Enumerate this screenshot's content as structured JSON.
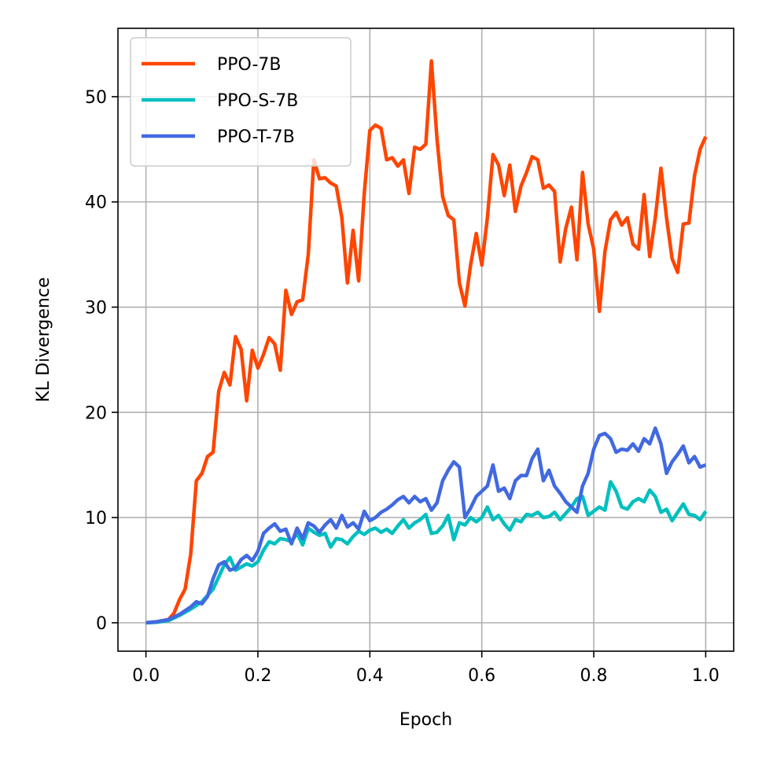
{
  "chart_data": {
    "type": "line",
    "title": "",
    "xlabel": "Epoch",
    "ylabel": "KL Divergence",
    "xlim": [
      -0.05,
      1.05
    ],
    "ylim": [
      -2.7,
      56.5
    ],
    "xticks": [
      0.0,
      0.2,
      0.4,
      0.6,
      0.8,
      1.0
    ],
    "xtick_labels": [
      "0.0",
      "0.2",
      "0.4",
      "0.6",
      "0.8",
      "1.0"
    ],
    "yticks": [
      0,
      10,
      20,
      30,
      40,
      50
    ],
    "ytick_labels": [
      "0",
      "10",
      "20",
      "30",
      "40",
      "50"
    ],
    "grid": true,
    "legend_position": "top-left",
    "series": [
      {
        "name": "PPO-7B",
        "color": "#ff4500",
        "points": [
          [
            0.0,
            0.0
          ],
          [
            0.02,
            0.1
          ],
          [
            0.04,
            0.3
          ],
          [
            0.05,
            0.9
          ],
          [
            0.06,
            2.2
          ],
          [
            0.07,
            3.2
          ],
          [
            0.08,
            6.5
          ],
          [
            0.09,
            13.5
          ],
          [
            0.1,
            14.2
          ],
          [
            0.11,
            15.8
          ],
          [
            0.12,
            16.2
          ],
          [
            0.13,
            22.0
          ],
          [
            0.14,
            23.8
          ],
          [
            0.15,
            22.6
          ],
          [
            0.16,
            27.2
          ],
          [
            0.17,
            26.0
          ],
          [
            0.18,
            21.1
          ],
          [
            0.19,
            25.9
          ],
          [
            0.2,
            24.2
          ],
          [
            0.21,
            25.5
          ],
          [
            0.22,
            27.1
          ],
          [
            0.23,
            26.5
          ],
          [
            0.24,
            24.0
          ],
          [
            0.25,
            31.6
          ],
          [
            0.26,
            29.3
          ],
          [
            0.27,
            30.5
          ],
          [
            0.28,
            30.7
          ],
          [
            0.29,
            35.0
          ],
          [
            0.3,
            44.0
          ],
          [
            0.31,
            42.2
          ],
          [
            0.32,
            42.3
          ],
          [
            0.33,
            41.8
          ],
          [
            0.34,
            41.5
          ],
          [
            0.35,
            38.5
          ],
          [
            0.36,
            32.3
          ],
          [
            0.37,
            37.3
          ],
          [
            0.38,
            32.5
          ],
          [
            0.39,
            40.8
          ],
          [
            0.4,
            46.8
          ],
          [
            0.41,
            47.3
          ],
          [
            0.42,
            47.0
          ],
          [
            0.43,
            44.0
          ],
          [
            0.44,
            44.2
          ],
          [
            0.45,
            43.4
          ],
          [
            0.46,
            44.0
          ],
          [
            0.47,
            40.8
          ],
          [
            0.48,
            45.2
          ],
          [
            0.49,
            45.0
          ],
          [
            0.5,
            45.5
          ],
          [
            0.51,
            53.4
          ],
          [
            0.52,
            46.0
          ],
          [
            0.53,
            40.5
          ],
          [
            0.54,
            38.7
          ],
          [
            0.55,
            38.3
          ],
          [
            0.56,
            32.3
          ],
          [
            0.57,
            30.1
          ],
          [
            0.58,
            34.0
          ],
          [
            0.59,
            37.0
          ],
          [
            0.6,
            34.0
          ],
          [
            0.61,
            38.5
          ],
          [
            0.62,
            44.5
          ],
          [
            0.63,
            43.5
          ],
          [
            0.64,
            40.6
          ],
          [
            0.65,
            43.5
          ],
          [
            0.66,
            39.1
          ],
          [
            0.67,
            41.5
          ],
          [
            0.68,
            42.8
          ],
          [
            0.69,
            44.3
          ],
          [
            0.7,
            44.0
          ],
          [
            0.71,
            41.3
          ],
          [
            0.72,
            41.6
          ],
          [
            0.73,
            41.0
          ],
          [
            0.74,
            34.3
          ],
          [
            0.75,
            37.5
          ],
          [
            0.76,
            39.5
          ],
          [
            0.77,
            34.5
          ],
          [
            0.78,
            42.8
          ],
          [
            0.79,
            37.9
          ],
          [
            0.8,
            35.5
          ],
          [
            0.81,
            29.6
          ],
          [
            0.82,
            35.3
          ],
          [
            0.83,
            38.3
          ],
          [
            0.84,
            39.0
          ],
          [
            0.85,
            37.8
          ],
          [
            0.86,
            38.5
          ],
          [
            0.87,
            36.0
          ],
          [
            0.88,
            35.5
          ],
          [
            0.89,
            40.7
          ],
          [
            0.9,
            34.8
          ],
          [
            0.91,
            38.5
          ],
          [
            0.92,
            43.2
          ],
          [
            0.93,
            38.5
          ],
          [
            0.94,
            34.6
          ],
          [
            0.95,
            33.3
          ],
          [
            0.96,
            37.9
          ],
          [
            0.97,
            38.0
          ],
          [
            0.98,
            42.5
          ],
          [
            0.99,
            45.0
          ],
          [
            1.0,
            46.2
          ]
        ]
      },
      {
        "name": "PPO-S-7B",
        "color": "#00bfbf",
        "points": [
          [
            0.0,
            0.0
          ],
          [
            0.02,
            0.05
          ],
          [
            0.04,
            0.2
          ],
          [
            0.06,
            0.7
          ],
          [
            0.08,
            1.3
          ],
          [
            0.1,
            2.0
          ],
          [
            0.12,
            3.2
          ],
          [
            0.14,
            5.5
          ],
          [
            0.15,
            6.2
          ],
          [
            0.16,
            5.0
          ],
          [
            0.17,
            5.3
          ],
          [
            0.18,
            5.6
          ],
          [
            0.19,
            5.4
          ],
          [
            0.2,
            5.8
          ],
          [
            0.21,
            6.9
          ],
          [
            0.22,
            7.7
          ],
          [
            0.23,
            7.5
          ],
          [
            0.24,
            8.0
          ],
          [
            0.25,
            7.9
          ],
          [
            0.26,
            7.7
          ],
          [
            0.27,
            8.5
          ],
          [
            0.28,
            7.4
          ],
          [
            0.29,
            9.0
          ],
          [
            0.3,
            8.6
          ],
          [
            0.31,
            8.3
          ],
          [
            0.32,
            8.5
          ],
          [
            0.33,
            7.2
          ],
          [
            0.34,
            8.0
          ],
          [
            0.35,
            7.9
          ],
          [
            0.36,
            7.5
          ],
          [
            0.37,
            8.2
          ],
          [
            0.38,
            8.7
          ],
          [
            0.39,
            8.4
          ],
          [
            0.4,
            8.8
          ],
          [
            0.41,
            9.0
          ],
          [
            0.42,
            8.6
          ],
          [
            0.43,
            8.9
          ],
          [
            0.44,
            8.5
          ],
          [
            0.45,
            9.2
          ],
          [
            0.46,
            9.8
          ],
          [
            0.47,
            9.0
          ],
          [
            0.48,
            9.5
          ],
          [
            0.49,
            9.8
          ],
          [
            0.5,
            10.3
          ],
          [
            0.51,
            8.5
          ],
          [
            0.52,
            8.6
          ],
          [
            0.53,
            9.2
          ],
          [
            0.54,
            10.2
          ],
          [
            0.55,
            7.9
          ],
          [
            0.56,
            9.5
          ],
          [
            0.57,
            9.3
          ],
          [
            0.58,
            10.0
          ],
          [
            0.59,
            9.6
          ],
          [
            0.6,
            10.0
          ],
          [
            0.61,
            11.0
          ],
          [
            0.62,
            9.8
          ],
          [
            0.63,
            10.2
          ],
          [
            0.64,
            9.4
          ],
          [
            0.65,
            8.8
          ],
          [
            0.66,
            9.8
          ],
          [
            0.67,
            9.6
          ],
          [
            0.68,
            10.3
          ],
          [
            0.69,
            10.2
          ],
          [
            0.7,
            10.5
          ],
          [
            0.71,
            10.0
          ],
          [
            0.72,
            10.1
          ],
          [
            0.73,
            10.5
          ],
          [
            0.74,
            9.8
          ],
          [
            0.75,
            10.4
          ],
          [
            0.76,
            11.0
          ],
          [
            0.77,
            11.8
          ],
          [
            0.78,
            12.0
          ],
          [
            0.79,
            10.2
          ],
          [
            0.8,
            10.6
          ],
          [
            0.81,
            11.0
          ],
          [
            0.82,
            10.7
          ],
          [
            0.83,
            13.4
          ],
          [
            0.84,
            12.5
          ],
          [
            0.85,
            11.0
          ],
          [
            0.86,
            10.8
          ],
          [
            0.87,
            11.5
          ],
          [
            0.88,
            11.8
          ],
          [
            0.89,
            11.5
          ],
          [
            0.9,
            12.6
          ],
          [
            0.91,
            12.0
          ],
          [
            0.92,
            10.5
          ],
          [
            0.93,
            10.8
          ],
          [
            0.94,
            9.7
          ],
          [
            0.95,
            10.5
          ],
          [
            0.96,
            11.3
          ],
          [
            0.97,
            10.3
          ],
          [
            0.98,
            10.2
          ],
          [
            0.99,
            9.8
          ],
          [
            1.0,
            10.6
          ]
        ]
      },
      {
        "name": "PPO-T-7B",
        "color": "#4169e1",
        "points": [
          [
            0.0,
            0.0
          ],
          [
            0.02,
            0.1
          ],
          [
            0.04,
            0.3
          ],
          [
            0.06,
            0.8
          ],
          [
            0.08,
            1.5
          ],
          [
            0.09,
            2.0
          ],
          [
            0.1,
            1.8
          ],
          [
            0.11,
            2.5
          ],
          [
            0.12,
            4.2
          ],
          [
            0.13,
            5.5
          ],
          [
            0.14,
            5.8
          ],
          [
            0.15,
            5.0
          ],
          [
            0.16,
            5.2
          ],
          [
            0.17,
            6.0
          ],
          [
            0.18,
            6.4
          ],
          [
            0.19,
            5.9
          ],
          [
            0.2,
            6.8
          ],
          [
            0.21,
            8.5
          ],
          [
            0.22,
            9.0
          ],
          [
            0.23,
            9.4
          ],
          [
            0.24,
            8.7
          ],
          [
            0.25,
            8.9
          ],
          [
            0.26,
            7.5
          ],
          [
            0.27,
            9.0
          ],
          [
            0.28,
            8.0
          ],
          [
            0.29,
            9.5
          ],
          [
            0.3,
            9.2
          ],
          [
            0.31,
            8.6
          ],
          [
            0.32,
            9.3
          ],
          [
            0.33,
            9.8
          ],
          [
            0.34,
            9.0
          ],
          [
            0.35,
            10.2
          ],
          [
            0.36,
            9.1
          ],
          [
            0.37,
            9.5
          ],
          [
            0.38,
            8.9
          ],
          [
            0.39,
            10.6
          ],
          [
            0.4,
            9.7
          ],
          [
            0.41,
            10.0
          ],
          [
            0.42,
            10.5
          ],
          [
            0.43,
            10.8
          ],
          [
            0.44,
            11.2
          ],
          [
            0.45,
            11.7
          ],
          [
            0.46,
            12.0
          ],
          [
            0.47,
            11.4
          ],
          [
            0.48,
            12.0
          ],
          [
            0.49,
            11.5
          ],
          [
            0.5,
            11.8
          ],
          [
            0.51,
            10.7
          ],
          [
            0.52,
            11.4
          ],
          [
            0.53,
            13.5
          ],
          [
            0.54,
            14.5
          ],
          [
            0.55,
            15.3
          ],
          [
            0.56,
            14.8
          ],
          [
            0.57,
            10.0
          ],
          [
            0.58,
            10.9
          ],
          [
            0.59,
            12.0
          ],
          [
            0.6,
            12.5
          ],
          [
            0.61,
            13.0
          ],
          [
            0.62,
            15.0
          ],
          [
            0.63,
            12.5
          ],
          [
            0.64,
            12.8
          ],
          [
            0.65,
            11.8
          ],
          [
            0.66,
            13.5
          ],
          [
            0.67,
            14.0
          ],
          [
            0.68,
            14.0
          ],
          [
            0.69,
            15.6
          ],
          [
            0.7,
            16.5
          ],
          [
            0.71,
            13.5
          ],
          [
            0.72,
            14.5
          ],
          [
            0.73,
            13.0
          ],
          [
            0.74,
            12.3
          ],
          [
            0.75,
            11.5
          ],
          [
            0.76,
            11.0
          ],
          [
            0.77,
            10.5
          ],
          [
            0.78,
            13.0
          ],
          [
            0.79,
            14.2
          ],
          [
            0.8,
            16.5
          ],
          [
            0.81,
            17.8
          ],
          [
            0.82,
            18.0
          ],
          [
            0.83,
            17.5
          ],
          [
            0.84,
            16.2
          ],
          [
            0.85,
            16.5
          ],
          [
            0.86,
            16.4
          ],
          [
            0.87,
            17.0
          ],
          [
            0.88,
            16.3
          ],
          [
            0.89,
            17.5
          ],
          [
            0.9,
            17.0
          ],
          [
            0.91,
            18.5
          ],
          [
            0.92,
            17.0
          ],
          [
            0.93,
            14.2
          ],
          [
            0.94,
            15.3
          ],
          [
            0.95,
            16.0
          ],
          [
            0.96,
            16.8
          ],
          [
            0.97,
            15.2
          ],
          [
            0.98,
            15.8
          ],
          [
            0.99,
            14.8
          ],
          [
            1.0,
            15.0
          ]
        ]
      }
    ]
  }
}
